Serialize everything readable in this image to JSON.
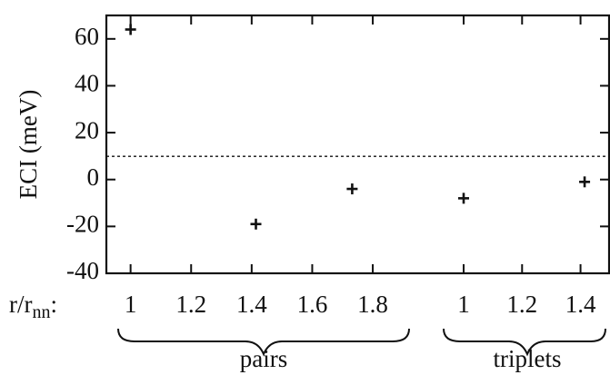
{
  "chart_data": {
    "type": "scatter",
    "title": "",
    "ylabel": "ECI (meV)",
    "xlabel_prefix": "r/r",
    "xlabel_subscript": "nn",
    "xlabel_suffix": ":",
    "ylim": [
      -40,
      70
    ],
    "yticks": [
      -40,
      -20,
      0,
      20,
      40,
      60
    ],
    "zero_line": "dashed",
    "grid": false,
    "groups": [
      {
        "name": "pairs",
        "xlim": [
          0.92,
          1.95
        ],
        "xticks": [
          1,
          1.2,
          1.4,
          1.6,
          1.8
        ],
        "points": [
          {
            "x": 1.0,
            "y": 64
          },
          {
            "x": 1.414,
            "y": -19
          },
          {
            "x": 1.732,
            "y": -4
          }
        ]
      },
      {
        "name": "triplets",
        "xlim": [
          1.0,
          1.42
        ],
        "xticks": [
          1,
          1.2,
          1.4
        ],
        "points": [
          {
            "x": 1.0,
            "y": -8
          },
          {
            "x": 1.414,
            "y": -1
          }
        ]
      }
    ]
  }
}
